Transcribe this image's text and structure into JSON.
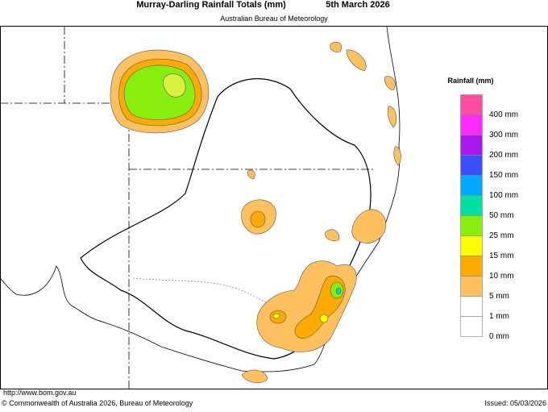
{
  "header": {
    "title": "Murray-Darling Rainfall Totals (mm)",
    "date": "5th March 2026",
    "subtitle": "Australian Bureau of Meteorology"
  },
  "legend": {
    "title": "Rainfall (mm)",
    "items": [
      {
        "label": "400 mm",
        "color": "#ff4fa0"
      },
      {
        "label": "300 mm",
        "color": "#ff2cff"
      },
      {
        "label": "200 mm",
        "color": "#aa18f0"
      },
      {
        "label": "150 mm",
        "color": "#3a50ff"
      },
      {
        "label": "100 mm",
        "color": "#00a8ff"
      },
      {
        "label": "50 mm",
        "color": "#00e0a0"
      },
      {
        "label": "25 mm",
        "color": "#88ee10"
      },
      {
        "label": "15 mm",
        "color": "#ffff00"
      },
      {
        "label": "10 mm",
        "color": "#ffaa00"
      },
      {
        "label": "5 mm",
        "color": "#ffc060"
      },
      {
        "label": "1 mm",
        "color": "#ffffff"
      },
      {
        "label": "0 mm",
        "color": "#ffffff"
      }
    ]
  },
  "footer": {
    "url": "http://www.bom.gov.au",
    "copyright": "© Commonwealth of Australia 2026, Bureau of Meteorology",
    "issued": "Issued: 05/03/2026"
  }
}
